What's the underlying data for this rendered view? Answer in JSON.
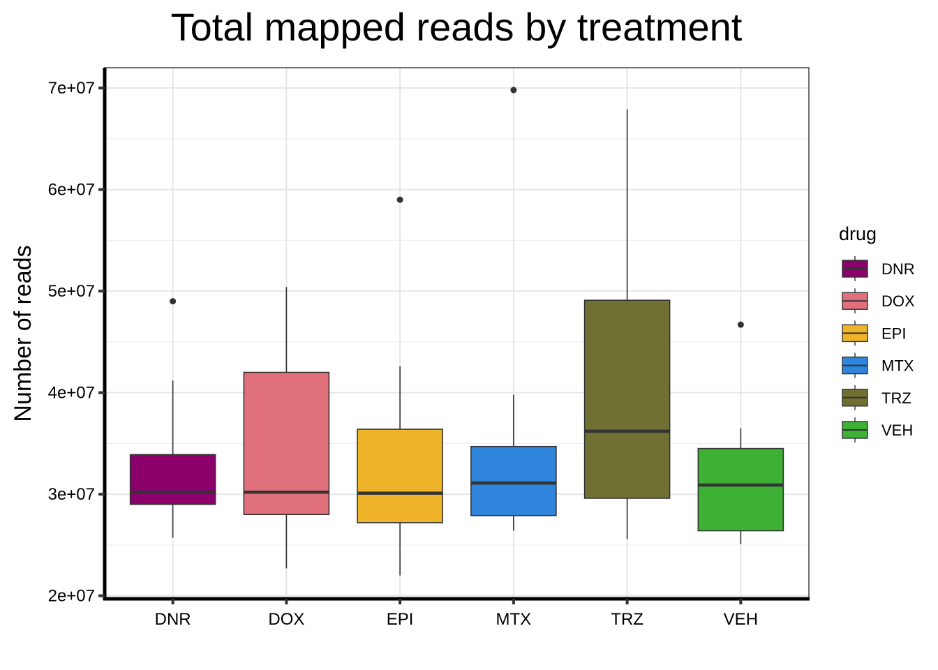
{
  "chart_data": {
    "type": "box",
    "title": "Total mapped reads by treatment",
    "xlabel": "",
    "ylabel": "Number of reads",
    "ylim": [
      20000000,
      72000000
    ],
    "yticks": [
      20000000,
      30000000,
      40000000,
      50000000,
      60000000,
      70000000
    ],
    "ytick_labels": [
      "2e+07",
      "3e+07",
      "4e+07",
      "5e+07",
      "6e+07",
      "7e+07"
    ],
    "grid": true,
    "legend": {
      "title": "drug",
      "placement": "right"
    },
    "categories": [
      "DNR",
      "DOX",
      "EPI",
      "MTX",
      "TRZ",
      "VEH"
    ],
    "colors": [
      "#8B006B",
      "#E0707B",
      "#F0B42A",
      "#2F86DC",
      "#6F7032",
      "#3DB134"
    ],
    "boxes": [
      {
        "name": "DNR",
        "whisker_low": 25700000,
        "q1": 29000000,
        "median": 30200000,
        "q3": 33900000,
        "whisker_high": 41200000,
        "outliers": [
          49000000
        ]
      },
      {
        "name": "DOX",
        "whisker_low": 22700000,
        "q1": 28000000,
        "median": 30200000,
        "q3": 42000000,
        "whisker_high": 50400000,
        "outliers": []
      },
      {
        "name": "EPI",
        "whisker_low": 22000000,
        "q1": 27200000,
        "median": 30100000,
        "q3": 36400000,
        "whisker_high": 42600000,
        "outliers": [
          59000000
        ]
      },
      {
        "name": "MTX",
        "whisker_low": 26400000,
        "q1": 27900000,
        "median": 31100000,
        "q3": 34700000,
        "whisker_high": 39800000,
        "outliers": [
          69800000
        ]
      },
      {
        "name": "TRZ",
        "whisker_low": 25600000,
        "q1": 29600000,
        "median": 36200000,
        "q3": 49100000,
        "whisker_high": 67900000,
        "outliers": []
      },
      {
        "name": "VEH",
        "whisker_low": 25100000,
        "q1": 26400000,
        "median": 30900000,
        "q3": 34500000,
        "whisker_high": 36500000,
        "outliers": [
          46700000
        ]
      }
    ]
  }
}
